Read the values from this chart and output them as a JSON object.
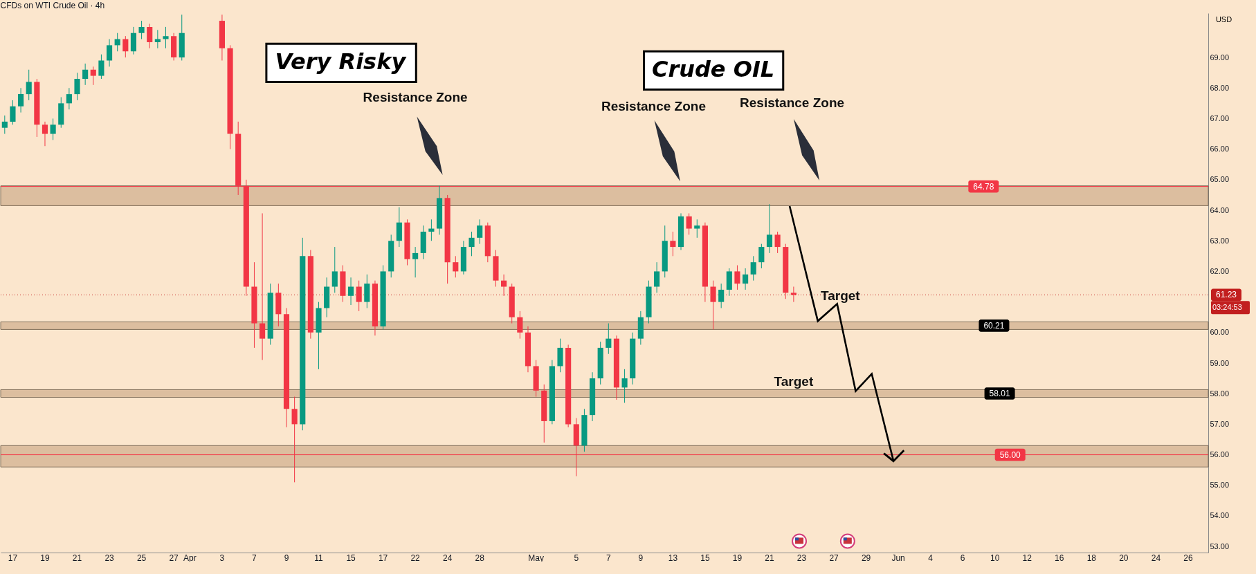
{
  "chart_data": {
    "type": "candlestick",
    "title": "CFDs on WTI Crude Oil · 4h",
    "ylabel": "USD",
    "categories": [
      null,
      "17",
      null,
      null,
      null,
      "19",
      null,
      null,
      null,
      "21",
      null,
      null,
      null,
      "23",
      null,
      null,
      null,
      "25",
      null,
      null,
      null,
      "27",
      null,
      "Apr",
      null,
      null,
      null,
      "3",
      null,
      null,
      null,
      "7",
      null,
      null,
      null,
      "9",
      null,
      null,
      null,
      "11",
      null,
      null,
      null,
      "15",
      null,
      null,
      null,
      "17",
      null,
      null,
      null,
      "22",
      null,
      null,
      null,
      "24",
      null,
      null,
      null,
      "28",
      null,
      null,
      null,
      null,
      null,
      null,
      "May",
      null,
      null,
      null,
      null,
      "5",
      null,
      null,
      null,
      "7",
      null,
      null,
      null,
      "9",
      null,
      null,
      null,
      "13",
      null,
      null,
      null,
      "15",
      null,
      null,
      null,
      "19",
      null,
      null,
      null,
      "21",
      null,
      null,
      null,
      "23",
      null,
      null,
      null,
      "27",
      null,
      null,
      null,
      "29",
      null,
      null,
      null,
      "Jun",
      null,
      null,
      null,
      "4",
      null,
      null,
      null,
      "6",
      null,
      null,
      null,
      "10",
      null,
      null,
      null,
      "12",
      null,
      null,
      null,
      "16",
      null,
      null,
      null,
      "18",
      null,
      null,
      null,
      "20",
      null,
      null,
      null,
      "24",
      null,
      null,
      null,
      "26",
      null,
      null
    ],
    "ohlc": [
      [
        66.7,
        67.1,
        66.5,
        66.9
      ],
      [
        66.9,
        67.6,
        66.8,
        67.4
      ],
      [
        67.4,
        68.0,
        67.2,
        67.8
      ],
      [
        67.8,
        68.6,
        67.6,
        68.2
      ],
      [
        68.2,
        68.3,
        66.4,
        66.8
      ],
      [
        66.8,
        66.9,
        66.1,
        66.5
      ],
      [
        66.5,
        67.0,
        66.3,
        66.8
      ],
      [
        66.8,
        67.7,
        66.7,
        67.5
      ],
      [
        67.5,
        68.0,
        67.3,
        67.8
      ],
      [
        67.8,
        68.5,
        67.6,
        68.3
      ],
      [
        68.3,
        68.8,
        68.1,
        68.6
      ],
      [
        68.6,
        68.7,
        68.1,
        68.4
      ],
      [
        68.4,
        69.1,
        68.3,
        68.9
      ],
      [
        68.9,
        69.6,
        68.7,
        69.4
      ],
      [
        69.4,
        69.8,
        69.2,
        69.6
      ],
      [
        69.6,
        69.7,
        69.0,
        69.2
      ],
      [
        69.2,
        70.0,
        69.1,
        69.8
      ],
      [
        69.8,
        70.2,
        69.6,
        70.0
      ],
      [
        70.0,
        70.1,
        69.3,
        69.5
      ],
      [
        69.5,
        69.9,
        69.3,
        69.6
      ],
      [
        69.6,
        70.0,
        69.3,
        69.7
      ],
      [
        69.7,
        69.8,
        68.9,
        69.0
      ],
      [
        69.0,
        70.4,
        68.9,
        69.8
      ],
      null,
      null,
      null,
      null,
      [
        70.2,
        70.4,
        68.9,
        69.3
      ],
      [
        69.3,
        69.4,
        66.0,
        66.5
      ],
      [
        66.5,
        66.9,
        64.5,
        64.8
      ],
      [
        64.8,
        65.0,
        61.2,
        61.5
      ],
      [
        61.5,
        62.3,
        59.5,
        60.3
      ],
      [
        60.3,
        63.9,
        59.1,
        59.8
      ],
      [
        59.8,
        61.6,
        59.6,
        61.3
      ],
      [
        61.3,
        61.6,
        60.2,
        60.6
      ],
      [
        60.6,
        60.8,
        56.9,
        57.5
      ],
      [
        57.5,
        57.9,
        55.1,
        57.0
      ],
      [
        57.0,
        63.1,
        56.8,
        62.5
      ],
      [
        62.5,
        62.7,
        59.8,
        60.0
      ],
      [
        60.0,
        61.0,
        58.8,
        60.8
      ],
      [
        60.8,
        61.8,
        60.5,
        61.5
      ],
      [
        61.5,
        62.8,
        61.3,
        62.0
      ],
      [
        62.0,
        62.2,
        61.0,
        61.2
      ],
      [
        61.2,
        61.8,
        60.9,
        61.5
      ],
      [
        61.5,
        61.7,
        60.7,
        61.0
      ],
      [
        61.0,
        61.9,
        60.8,
        61.6
      ],
      [
        61.6,
        61.7,
        59.9,
        60.2
      ],
      [
        60.2,
        62.2,
        60.1,
        62.0
      ],
      [
        62.0,
        63.2,
        61.8,
        63.0
      ],
      [
        63.0,
        64.1,
        62.8,
        63.6
      ],
      [
        63.6,
        63.7,
        62.2,
        62.4
      ],
      [
        62.4,
        62.8,
        61.8,
        62.6
      ],
      [
        62.6,
        63.5,
        62.4,
        63.3
      ],
      [
        63.3,
        63.7,
        63.0,
        63.4
      ],
      [
        63.4,
        64.8,
        63.2,
        64.4
      ],
      [
        64.4,
        64.5,
        61.6,
        62.3
      ],
      [
        62.3,
        62.5,
        61.8,
        62.0
      ],
      [
        62.0,
        63.0,
        61.9,
        62.8
      ],
      [
        62.8,
        63.3,
        62.5,
        63.1
      ],
      [
        63.1,
        63.7,
        62.9,
        63.5
      ],
      [
        63.5,
        63.6,
        62.3,
        62.5
      ],
      [
        62.5,
        62.7,
        61.5,
        61.7
      ],
      [
        61.7,
        61.9,
        61.2,
        61.5
      ],
      [
        61.5,
        61.6,
        60.3,
        60.5
      ],
      [
        60.5,
        60.7,
        59.8,
        60.0
      ],
      [
        60.0,
        60.2,
        58.7,
        58.9
      ],
      [
        58.9,
        59.1,
        57.9,
        58.1
      ],
      [
        58.1,
        58.3,
        56.4,
        57.1
      ],
      [
        57.1,
        59.1,
        57.0,
        58.9
      ],
      [
        58.9,
        59.8,
        58.7,
        59.5
      ],
      [
        59.5,
        59.6,
        56.9,
        57.0
      ],
      [
        57.0,
        57.2,
        55.3,
        56.3
      ],
      [
        56.3,
        57.5,
        56.1,
        57.3
      ],
      [
        57.3,
        58.7,
        57.1,
        58.5
      ],
      [
        58.5,
        59.7,
        58.3,
        59.5
      ],
      [
        59.5,
        60.3,
        59.3,
        59.8
      ],
      [
        59.8,
        59.9,
        57.8,
        58.2
      ],
      [
        58.2,
        58.8,
        57.7,
        58.5
      ],
      [
        58.5,
        60.0,
        58.3,
        59.8
      ],
      [
        59.8,
        60.7,
        59.6,
        60.5
      ],
      [
        60.5,
        61.7,
        60.3,
        61.5
      ],
      [
        61.5,
        62.3,
        61.3,
        62.0
      ],
      [
        62.0,
        63.5,
        61.8,
        63.0
      ],
      [
        63.0,
        63.3,
        62.5,
        62.8
      ],
      [
        62.8,
        63.9,
        62.7,
        63.8
      ],
      [
        63.8,
        63.9,
        63.2,
        63.4
      ],
      [
        63.4,
        63.7,
        63.1,
        63.5
      ],
      [
        63.5,
        63.6,
        61.0,
        61.5
      ],
      [
        61.5,
        61.7,
        60.1,
        61.0
      ],
      [
        61.0,
        61.6,
        60.8,
        61.4
      ],
      [
        61.4,
        62.1,
        61.2,
        62.0
      ],
      [
        62.0,
        62.2,
        61.4,
        61.6
      ],
      [
        61.6,
        62.1,
        61.4,
        61.9
      ],
      [
        61.9,
        62.5,
        61.7,
        62.3
      ],
      [
        62.3,
        62.9,
        62.1,
        62.8
      ],
      [
        62.8,
        64.2,
        62.6,
        63.2
      ],
      [
        63.2,
        63.3,
        62.6,
        62.8
      ],
      [
        62.8,
        62.9,
        61.1,
        61.3
      ],
      [
        61.3,
        61.5,
        61.0,
        61.23
      ],
      null,
      null,
      null,
      null,
      null,
      null,
      null,
      null,
      null,
      null,
      null,
      null,
      null,
      null,
      null,
      null,
      null,
      null,
      null,
      null,
      null,
      null,
      null,
      null,
      null,
      null,
      null,
      null,
      null,
      null,
      null,
      null,
      null,
      null,
      null,
      null,
      null,
      null,
      null,
      null,
      null,
      null,
      null,
      null,
      null,
      null,
      null,
      null,
      null,
      null,
      null
    ],
    "colors": [
      "#089981",
      "#089981",
      "#089981",
      "#089981",
      "#f23645",
      "#f23645",
      "#089981",
      "#089981",
      "#089981",
      "#089981",
      "#089981",
      "#f23645",
      "#089981",
      "#089981",
      "#089981",
      "#f23645",
      "#089981",
      "#089981",
      "#f23645",
      "#089981",
      "#089981",
      "#f23645",
      "#089981",
      null,
      null,
      null,
      null,
      "#f23645",
      "#f23645",
      "#f23645",
      "#f23645",
      "#f23645",
      "#f23645",
      "#089981",
      "#f23645",
      "#f23645",
      "#f23645",
      "#089981",
      "#f23645",
      "#089981",
      "#089981",
      "#089981",
      "#f23645",
      "#089981",
      "#f23645",
      "#089981",
      "#f23645",
      "#089981",
      "#089981",
      "#089981",
      "#f23645",
      "#089981",
      "#089981",
      "#089981",
      "#089981",
      "#f23645",
      "#f23645",
      "#089981",
      "#089981",
      "#089981",
      "#f23645",
      "#f23645",
      "#f23645",
      "#f23645",
      "#f23645",
      "#f23645",
      "#f23645",
      "#f23645",
      "#089981",
      "#089981",
      "#f23645",
      "#f23645",
      "#089981",
      "#089981",
      "#089981",
      "#089981",
      "#f23645",
      "#089981",
      "#089981",
      "#089981",
      "#089981",
      "#089981",
      "#089981",
      "#f23645",
      "#089981",
      "#f23645",
      "#089981",
      "#f23645",
      "#f23645",
      "#089981",
      "#089981",
      "#f23645",
      "#089981",
      "#089981",
      "#089981",
      "#089981",
      "#f23645",
      "#f23645",
      "#f23645",
      null,
      null,
      null,
      null,
      null,
      null,
      null,
      null,
      null,
      null,
      null,
      null,
      null,
      null,
      null,
      null,
      null,
      null,
      null,
      null,
      null,
      null,
      null,
      null,
      null,
      null,
      null,
      null,
      null,
      null,
      null,
      null,
      null,
      null,
      null,
      null,
      null,
      null,
      null,
      null,
      null,
      null,
      null,
      null,
      null,
      null,
      null,
      null,
      null,
      null,
      null
    ],
    "ylim": [
      52.8,
      70.45
    ],
    "yticks": [
      {
        "value": 53,
        "label": "53.00"
      },
      {
        "value": 54,
        "label": "54.00"
      },
      {
        "value": 55,
        "label": "55.00"
      },
      {
        "value": 56,
        "label": "56.00"
      },
      {
        "value": 57,
        "label": "57.00"
      },
      {
        "value": 58,
        "label": "58.00"
      },
      {
        "value": 59,
        "label": "59.00"
      },
      {
        "value": 60,
        "label": "60.00"
      },
      {
        "value": 62,
        "label": "62.00"
      },
      {
        "value": 63,
        "label": "63.00"
      },
      {
        "value": 64,
        "label": "64.00"
      },
      {
        "value": 65,
        "label": "65.00"
      },
      {
        "value": 66,
        "label": "66.00"
      },
      {
        "value": 67,
        "label": "67.00"
      },
      {
        "value": 68,
        "label": "68.00"
      },
      {
        "value": 69,
        "label": "69.00"
      }
    ],
    "bands": [
      {
        "axis": "y",
        "from": 64.15,
        "to": 64.8,
        "label": null,
        "color": "#d7b898"
      },
      {
        "axis": "y",
        "from": 60.1,
        "to": 60.35,
        "label": "60.21",
        "color": "#d7b898"
      },
      {
        "axis": "y",
        "from": 57.88,
        "to": 58.13,
        "label": "58.01",
        "color": "#d7b898"
      },
      {
        "axis": "y",
        "from": 55.6,
        "to": 56.3,
        "label": null,
        "color": "#d7b898"
      }
    ],
    "ref_lines": [
      {
        "axis": "y",
        "value": 64.78,
        "label": "64.78",
        "color": "#f23645"
      },
      {
        "axis": "y",
        "value": 56.0,
        "label": "56.00",
        "color": "#f23645"
      },
      {
        "axis": "y",
        "value": 61.23,
        "label": "61.23",
        "color": "#c21f1f",
        "line_style": "dotted"
      }
    ],
    "annotations": [
      "Very Risky",
      "Crude OIL",
      "Resistance Zone",
      "Resistance Zone",
      "Resistance Zone",
      "Target",
      "Target",
      "03:24:53"
    ]
  }
}
